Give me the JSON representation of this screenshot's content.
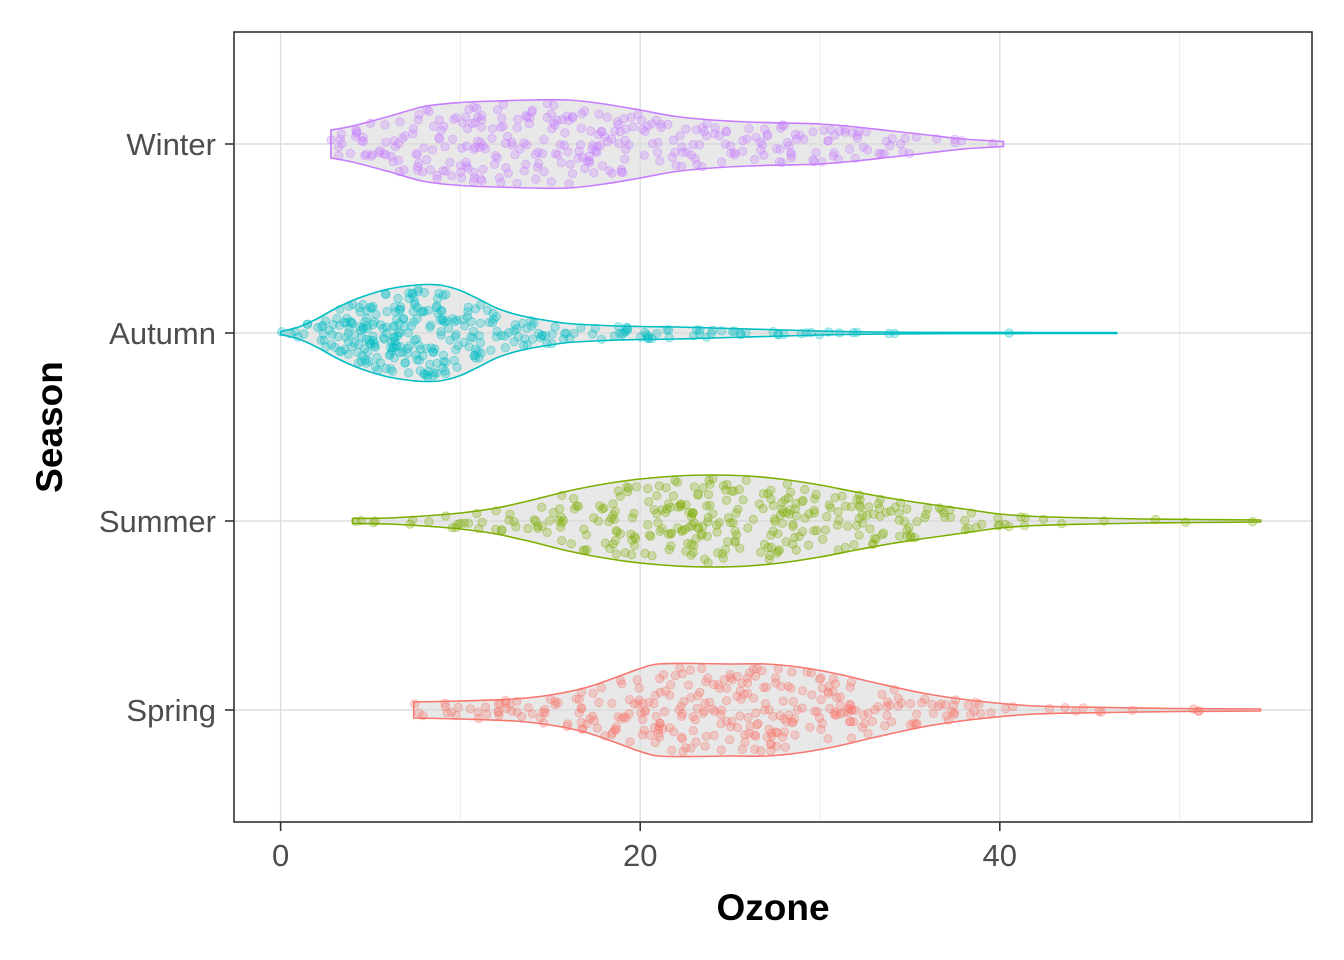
{
  "chart_data": {
    "type": "violin",
    "orientation": "horizontal",
    "xlabel": "Ozone",
    "ylabel": "Season",
    "xlim": [
      -3,
      57
    ],
    "x_ticks": [
      0,
      20,
      40
    ],
    "x_tick_labels": [
      "0",
      "20",
      "40"
    ],
    "categories": [
      "Spring",
      "Summer",
      "Autumn",
      "Winter"
    ],
    "grid": true,
    "legend": "none",
    "series": [
      {
        "category": "Spring",
        "color": "#F8766D",
        "min": 7.4,
        "max": 54.5,
        "density": [
          [
            7.4,
            0.16
          ],
          [
            10,
            0.18
          ],
          [
            13,
            0.22
          ],
          [
            15,
            0.3
          ],
          [
            17,
            0.45
          ],
          [
            19,
            0.7
          ],
          [
            20,
            0.83
          ],
          [
            21,
            0.92
          ],
          [
            23,
            0.93
          ],
          [
            25,
            0.92
          ],
          [
            27,
            0.92
          ],
          [
            29,
            0.85
          ],
          [
            31,
            0.72
          ],
          [
            33,
            0.55
          ],
          [
            36,
            0.32
          ],
          [
            39,
            0.17
          ],
          [
            42,
            0.08
          ],
          [
            46,
            0.05
          ],
          [
            50,
            0.03
          ],
          [
            54.5,
            0.02
          ]
        ]
      },
      {
        "category": "Summer",
        "color": "#7CAE00",
        "min": 4,
        "max": 54.5,
        "density": [
          [
            4,
            0.05
          ],
          [
            6,
            0.06
          ],
          [
            8,
            0.1
          ],
          [
            10,
            0.16
          ],
          [
            12,
            0.26
          ],
          [
            14,
            0.42
          ],
          [
            16,
            0.6
          ],
          [
            18,
            0.74
          ],
          [
            20,
            0.84
          ],
          [
            22,
            0.9
          ],
          [
            24,
            0.92
          ],
          [
            26,
            0.9
          ],
          [
            28,
            0.83
          ],
          [
            30,
            0.72
          ],
          [
            32,
            0.58
          ],
          [
            34,
            0.45
          ],
          [
            36,
            0.34
          ],
          [
            38,
            0.24
          ],
          [
            40,
            0.14
          ],
          [
            42,
            0.09
          ],
          [
            45,
            0.06
          ],
          [
            48,
            0.04
          ],
          [
            51,
            0.03
          ],
          [
            54.5,
            0.02
          ]
        ]
      },
      {
        "category": "Autumn",
        "color": "#00BFC4",
        "min": 0,
        "max": 46.5,
        "density": [
          [
            0,
            0.03
          ],
          [
            1,
            0.12
          ],
          [
            2,
            0.28
          ],
          [
            3,
            0.48
          ],
          [
            4,
            0.65
          ],
          [
            5,
            0.78
          ],
          [
            6,
            0.88
          ],
          [
            7,
            0.94
          ],
          [
            8,
            0.97
          ],
          [
            9,
            0.95
          ],
          [
            10,
            0.85
          ],
          [
            11,
            0.68
          ],
          [
            12,
            0.5
          ],
          [
            13,
            0.38
          ],
          [
            14,
            0.3
          ],
          [
            15,
            0.24
          ],
          [
            16,
            0.19
          ],
          [
            18,
            0.15
          ],
          [
            20,
            0.13
          ],
          [
            22,
            0.12
          ],
          [
            24,
            0.1
          ],
          [
            26,
            0.08
          ],
          [
            28,
            0.06
          ],
          [
            30,
            0.04
          ],
          [
            32,
            0.025
          ],
          [
            35,
            0.015
          ],
          [
            38,
            0.012
          ],
          [
            42,
            0.01
          ],
          [
            46.5,
            0.008
          ]
        ]
      },
      {
        "category": "Winter",
        "color": "#C77CFF",
        "min": 2.8,
        "max": 40.2,
        "density": [
          [
            2.8,
            0.28
          ],
          [
            4,
            0.36
          ],
          [
            6,
            0.55
          ],
          [
            8,
            0.75
          ],
          [
            10,
            0.83
          ],
          [
            12,
            0.86
          ],
          [
            14,
            0.88
          ],
          [
            16,
            0.88
          ],
          [
            18,
            0.8
          ],
          [
            20,
            0.68
          ],
          [
            22,
            0.55
          ],
          [
            24,
            0.48
          ],
          [
            26,
            0.44
          ],
          [
            28,
            0.42
          ],
          [
            30,
            0.4
          ],
          [
            32,
            0.34
          ],
          [
            34,
            0.26
          ],
          [
            36,
            0.18
          ],
          [
            38,
            0.1
          ],
          [
            40.2,
            0.05
          ]
        ]
      }
    ]
  }
}
